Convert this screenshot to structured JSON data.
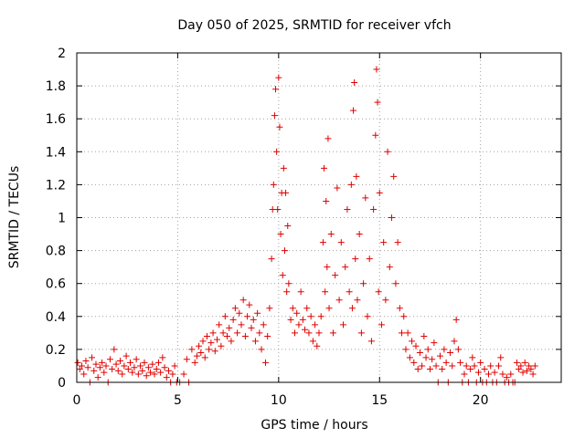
{
  "chart_data": {
    "type": "scatter",
    "title": "Day 050 of 2025, SRMTID for receiver vfch",
    "xlabel": "GPS time / hours",
    "ylabel": "SRMTID / TECUs",
    "xlim": [
      0,
      24
    ],
    "ylim": [
      0,
      2
    ],
    "x_ticks": [
      0,
      5,
      10,
      15,
      20
    ],
    "x_tick_labels": [
      "0",
      "5",
      "10",
      "15",
      "20"
    ],
    "y_ticks": [
      0,
      0.2,
      0.4,
      0.6,
      0.8,
      1,
      1.2,
      1.4,
      1.6,
      1.8,
      2
    ],
    "y_tick_labels": [
      "0",
      "0.2",
      "0.4",
      "0.6",
      "0.8",
      "1",
      "1.2",
      "1.4",
      "1.6",
      "1.8",
      "2"
    ],
    "grid": true,
    "marker": "+",
    "color": "#e00000",
    "series": [
      {
        "name": "SRMTID",
        "points": [
          [
            0.05,
            0.12
          ],
          [
            0.15,
            0.08
          ],
          [
            0.25,
            0.1
          ],
          [
            0.35,
            0.05
          ],
          [
            0.45,
            0.13
          ],
          [
            0.55,
            0.09
          ],
          [
            0.65,
            0.0
          ],
          [
            0.75,
            0.15
          ],
          [
            0.85,
            0.07
          ],
          [
            0.95,
            0.11
          ],
          [
            1.05,
            0.03
          ],
          [
            1.15,
            0.09
          ],
          [
            1.25,
            0.12
          ],
          [
            1.35,
            0.06
          ],
          [
            1.45,
            0.1
          ],
          [
            1.55,
            0.0
          ],
          [
            1.65,
            0.14
          ],
          [
            1.75,
            0.08
          ],
          [
            1.85,
            0.2
          ],
          [
            1.95,
            0.11
          ],
          [
            2.05,
            0.07
          ],
          [
            2.15,
            0.13
          ],
          [
            2.25,
            0.05
          ],
          [
            2.35,
            0.1
          ],
          [
            2.45,
            0.16
          ],
          [
            2.55,
            0.08
          ],
          [
            2.65,
            0.12
          ],
          [
            2.75,
            0.06
          ],
          [
            2.85,
            0.09
          ],
          [
            2.95,
            0.14
          ],
          [
            3.05,
            0.05
          ],
          [
            3.15,
            0.1
          ],
          [
            3.25,
            0.07
          ],
          [
            3.35,
            0.12
          ],
          [
            3.45,
            0.04
          ],
          [
            3.55,
            0.09
          ],
          [
            3.65,
            0.06
          ],
          [
            3.75,
            0.11
          ],
          [
            3.85,
            0.05
          ],
          [
            3.95,
            0.08
          ],
          [
            4.05,
            0.12
          ],
          [
            4.15,
            0.06
          ],
          [
            4.25,
            0.15
          ],
          [
            4.35,
            0.09
          ],
          [
            4.45,
            0.03
          ],
          [
            4.55,
            0.07
          ],
          [
            4.65,
            0.0
          ],
          [
            4.75,
            0.05
          ],
          [
            4.85,
            0.1
          ],
          [
            4.95,
            0.0
          ],
          [
            5.1,
            0.0
          ],
          [
            5.3,
            0.05
          ],
          [
            5.45,
            0.14
          ],
          [
            5.55,
            0.0
          ],
          [
            5.7,
            0.2
          ],
          [
            5.85,
            0.12
          ],
          [
            5.95,
            0.16
          ],
          [
            6.05,
            0.22
          ],
          [
            6.15,
            0.18
          ],
          [
            6.25,
            0.25
          ],
          [
            6.35,
            0.15
          ],
          [
            6.45,
            0.28
          ],
          [
            6.55,
            0.2
          ],
          [
            6.65,
            0.24
          ],
          [
            6.75,
            0.3
          ],
          [
            6.85,
            0.19
          ],
          [
            6.95,
            0.26
          ],
          [
            7.05,
            0.35
          ],
          [
            7.15,
            0.22
          ],
          [
            7.25,
            0.3
          ],
          [
            7.35,
            0.4
          ],
          [
            7.45,
            0.28
          ],
          [
            7.55,
            0.33
          ],
          [
            7.65,
            0.25
          ],
          [
            7.75,
            0.38
          ],
          [
            7.85,
            0.45
          ],
          [
            7.95,
            0.3
          ],
          [
            8.05,
            0.42
          ],
          [
            8.15,
            0.35
          ],
          [
            8.25,
            0.5
          ],
          [
            8.35,
            0.28
          ],
          [
            8.45,
            0.4
          ],
          [
            8.55,
            0.47
          ],
          [
            8.65,
            0.33
          ],
          [
            8.75,
            0.38
          ],
          [
            8.85,
            0.25
          ],
          [
            8.95,
            0.42
          ],
          [
            9.05,
            0.3
          ],
          [
            9.15,
            0.2
          ],
          [
            9.25,
            0.35
          ],
          [
            9.35,
            0.12
          ],
          [
            9.45,
            0.28
          ],
          [
            9.55,
            0.45
          ],
          [
            9.65,
            0.75
          ],
          [
            9.7,
            1.05
          ],
          [
            9.75,
            1.2
          ],
          [
            9.8,
            1.62
          ],
          [
            9.85,
            1.78
          ],
          [
            9.9,
            1.4
          ],
          [
            9.95,
            1.05
          ],
          [
            10.0,
            1.85
          ],
          [
            10.05,
            1.55
          ],
          [
            10.1,
            0.9
          ],
          [
            10.15,
            1.15
          ],
          [
            10.2,
            0.65
          ],
          [
            10.25,
            1.3
          ],
          [
            10.3,
            0.8
          ],
          [
            10.35,
            1.15
          ],
          [
            10.4,
            0.55
          ],
          [
            10.45,
            0.95
          ],
          [
            10.5,
            0.6
          ],
          [
            10.6,
            0.38
          ],
          [
            10.7,
            0.45
          ],
          [
            10.8,
            0.3
          ],
          [
            10.9,
            0.42
          ],
          [
            11.0,
            0.35
          ],
          [
            11.1,
            0.55
          ],
          [
            11.2,
            0.38
          ],
          [
            11.3,
            0.32
          ],
          [
            11.4,
            0.45
          ],
          [
            11.5,
            0.3
          ],
          [
            11.6,
            0.4
          ],
          [
            11.7,
            0.25
          ],
          [
            11.8,
            0.35
          ],
          [
            11.9,
            0.22
          ],
          [
            12.0,
            0.3
          ],
          [
            12.1,
            0.4
          ],
          [
            12.2,
            0.85
          ],
          [
            12.25,
            1.3
          ],
          [
            12.3,
            0.55
          ],
          [
            12.35,
            1.1
          ],
          [
            12.4,
            0.7
          ],
          [
            12.45,
            1.48
          ],
          [
            12.5,
            0.45
          ],
          [
            12.6,
            0.9
          ],
          [
            12.7,
            0.3
          ],
          [
            12.8,
            0.65
          ],
          [
            12.9,
            1.18
          ],
          [
            13.0,
            0.5
          ],
          [
            13.1,
            0.85
          ],
          [
            13.2,
            0.35
          ],
          [
            13.3,
            0.7
          ],
          [
            13.4,
            1.05
          ],
          [
            13.5,
            0.55
          ],
          [
            13.6,
            1.2
          ],
          [
            13.65,
            0.45
          ],
          [
            13.7,
            1.65
          ],
          [
            13.75,
            1.82
          ],
          [
            13.8,
            0.75
          ],
          [
            13.85,
            1.25
          ],
          [
            13.9,
            0.5
          ],
          [
            14.0,
            0.9
          ],
          [
            14.1,
            0.3
          ],
          [
            14.2,
            0.6
          ],
          [
            14.3,
            1.12
          ],
          [
            14.4,
            0.4
          ],
          [
            14.5,
            0.75
          ],
          [
            14.6,
            0.25
          ],
          [
            14.7,
            1.05
          ],
          [
            14.8,
            1.5
          ],
          [
            14.85,
            1.9
          ],
          [
            14.9,
            1.7
          ],
          [
            14.95,
            0.55
          ],
          [
            15.0,
            1.15
          ],
          [
            15.1,
            0.35
          ],
          [
            15.2,
            0.85
          ],
          [
            15.3,
            0.5
          ],
          [
            15.4,
            1.4
          ],
          [
            15.5,
            0.7
          ],
          [
            15.6,
            1.0
          ],
          [
            15.7,
            1.25
          ],
          [
            15.8,
            0.6
          ],
          [
            15.9,
            0.85
          ],
          [
            16.0,
            0.45
          ],
          [
            16.1,
            0.3
          ],
          [
            16.2,
            0.4
          ],
          [
            16.3,
            0.2
          ],
          [
            16.4,
            0.3
          ],
          [
            16.5,
            0.15
          ],
          [
            16.6,
            0.25
          ],
          [
            16.7,
            0.12
          ],
          [
            16.8,
            0.22
          ],
          [
            16.9,
            0.08
          ],
          [
            17.0,
            0.18
          ],
          [
            17.1,
            0.1
          ],
          [
            17.2,
            0.28
          ],
          [
            17.3,
            0.15
          ],
          [
            17.4,
            0.2
          ],
          [
            17.5,
            0.08
          ],
          [
            17.6,
            0.14
          ],
          [
            17.7,
            0.24
          ],
          [
            17.8,
            0.1
          ],
          [
            17.9,
            0.0
          ],
          [
            18.0,
            0.16
          ],
          [
            18.1,
            0.08
          ],
          [
            18.2,
            0.2
          ],
          [
            18.3,
            0.12
          ],
          [
            18.4,
            0.0
          ],
          [
            18.5,
            0.18
          ],
          [
            18.6,
            0.1
          ],
          [
            18.7,
            0.25
          ],
          [
            18.8,
            0.38
          ],
          [
            18.9,
            0.2
          ],
          [
            19.0,
            0.12
          ],
          [
            19.1,
            0.0
          ],
          [
            19.2,
            0.05
          ],
          [
            19.3,
            0.1
          ],
          [
            19.4,
            0.0
          ],
          [
            19.5,
            0.08
          ],
          [
            19.6,
            0.15
          ],
          [
            19.7,
            0.1
          ],
          [
            19.8,
            0.0
          ],
          [
            19.9,
            0.06
          ],
          [
            20.0,
            0.12
          ],
          [
            20.1,
            0.0
          ],
          [
            20.2,
            0.08
          ],
          [
            20.3,
            0.0
          ],
          [
            20.4,
            0.05
          ],
          [
            20.5,
            0.1
          ],
          [
            20.6,
            0.0
          ],
          [
            20.7,
            0.06
          ],
          [
            20.8,
            0.0
          ],
          [
            20.9,
            0.1
          ],
          [
            21.0,
            0.15
          ],
          [
            21.1,
            0.05
          ],
          [
            21.2,
            0.0
          ],
          [
            21.3,
            0.03
          ],
          [
            21.4,
            0.0
          ],
          [
            21.5,
            0.05
          ],
          [
            21.6,
            0.0
          ],
          [
            21.7,
            0.0
          ],
          [
            21.8,
            0.12
          ],
          [
            21.9,
            0.08
          ],
          [
            22.0,
            0.1
          ],
          [
            22.1,
            0.06
          ],
          [
            22.2,
            0.12
          ],
          [
            22.3,
            0.07
          ],
          [
            22.4,
            0.1
          ],
          [
            22.5,
            0.08
          ],
          [
            22.6,
            0.05
          ],
          [
            22.7,
            0.1
          ]
        ]
      }
    ]
  }
}
